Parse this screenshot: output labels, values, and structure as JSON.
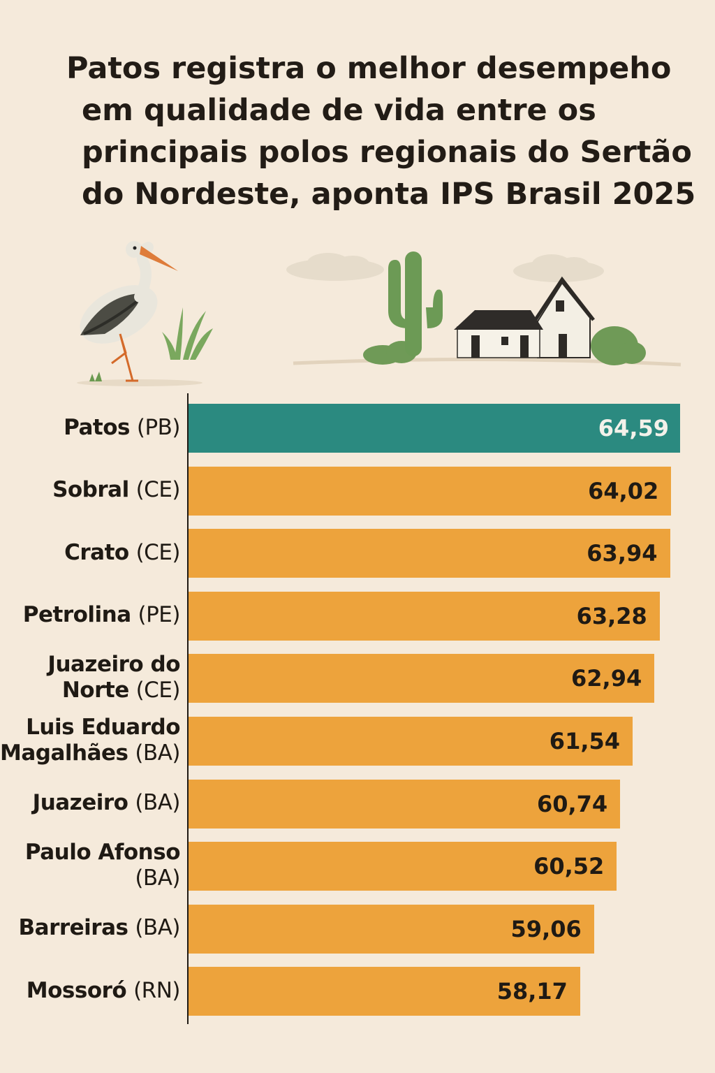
{
  "title_lines": [
    "Patos registra o melhor desempeho",
    "em qualidade de vida entre os",
    "principais polos regionais do Sertão",
    "do Nordeste, aponta IPS Brasil 2025"
  ],
  "colors": {
    "background": "#f5eadb",
    "highlight_bar": "#2b8a80",
    "bar": "#eda33c",
    "highlight_text": "#f3f1ea",
    "bar_text": "#1f1a14"
  },
  "icons": [
    "stork-icon",
    "grass-icon",
    "cactus-icon",
    "house-icon",
    "cloud-icon",
    "bush-icon"
  ],
  "chart_data": {
    "type": "bar",
    "orientation": "horizontal",
    "title": "Patos registra o melhor desempeho em qualidade de vida entre os principais polos regionais do Sertão do Nordeste, aponta IPS Brasil 2025",
    "xlim": [
      33,
      64.59
    ],
    "grid": false,
    "categories": [
      {
        "name": "Patos",
        "state": "(PB)",
        "value": 64.59,
        "display": "64,59",
        "highlight": true
      },
      {
        "name": "Sobral",
        "state": "(CE)",
        "value": 64.02,
        "display": "64,02",
        "highlight": false
      },
      {
        "name": "Crato",
        "state": "(CE)",
        "value": 63.94,
        "display": "63,94",
        "highlight": false
      },
      {
        "name": "Petrolina",
        "state": "(PE)",
        "value": 63.28,
        "display": "63,28",
        "highlight": false
      },
      {
        "name": "Juazeiro do Norte",
        "state": "(CE)",
        "value": 62.94,
        "display": "62,94",
        "highlight": false,
        "lines": [
          "Juazeiro do",
          "Norte"
        ]
      },
      {
        "name": "Luis Eduardo Magalhães",
        "state": "(BA)",
        "value": 61.54,
        "display": "61,54",
        "highlight": false,
        "lines": [
          "Luis Eduardo",
          "Magalhães"
        ]
      },
      {
        "name": "Juazeiro",
        "state": "(BA)",
        "value": 60.74,
        "display": "60,74",
        "highlight": false
      },
      {
        "name": "Paulo Afonso",
        "state": "(BA)",
        "value": 60.52,
        "display": "60,52",
        "highlight": false,
        "state_own_line": true
      },
      {
        "name": "Barreiras",
        "state": "(BA)",
        "value": 59.06,
        "display": "59,06",
        "highlight": false
      },
      {
        "name": "Mossoró",
        "state": "(RN)",
        "value": 58.17,
        "display": "58,17",
        "highlight": false
      }
    ]
  }
}
